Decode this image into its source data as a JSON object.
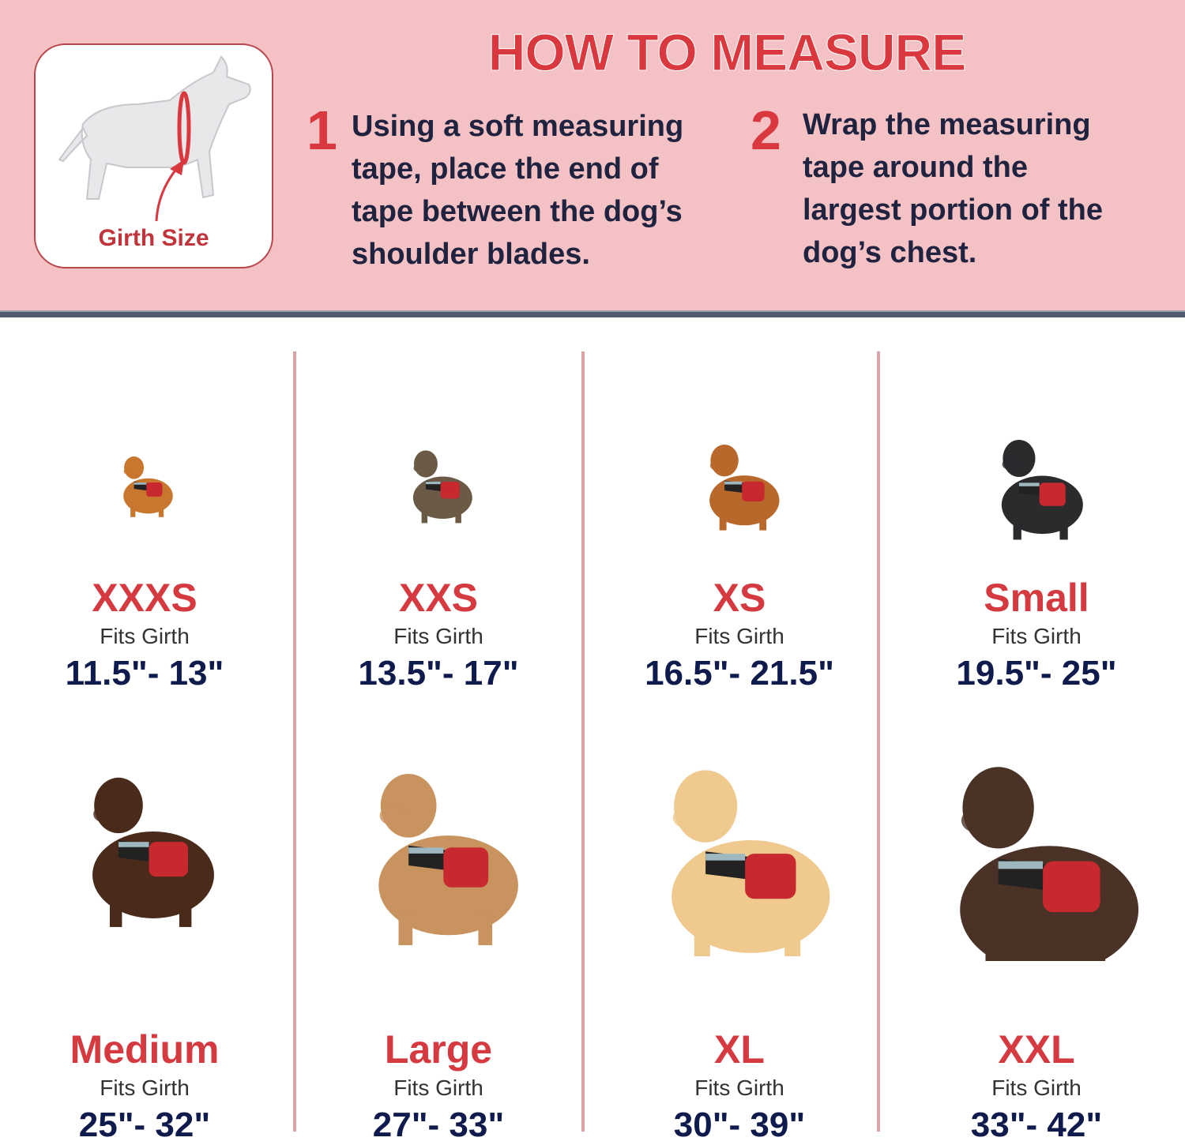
{
  "header": {
    "title": "HOW TO MEASURE",
    "girth_label": "Girth Size",
    "steps": [
      {
        "number": "1",
        "lines": [
          "Using a soft measuring",
          "tape, place the end of",
          "tape between the dog’s",
          "shoulder blades."
        ]
      },
      {
        "number": "2",
        "lines": [
          "Wrap the measuring",
          "tape around the",
          "largest portion of the",
          "dog’s chest."
        ]
      }
    ]
  },
  "colors": {
    "background": "#f4c2c4",
    "accent": "#d9383f",
    "text": "#1f2340",
    "range": "#0f1a4d"
  },
  "sizes": [
    {
      "size": "XXXS",
      "fits": "Fits Girth",
      "range": "11.5\"- 13\"",
      "fur": "#c9772f"
    },
    {
      "size": "XXS",
      "fits": "Fits Girth",
      "range": "13.5\"- 17\"",
      "fur": "#6b5a45"
    },
    {
      "size": "XS",
      "fits": "Fits Girth",
      "range": "16.5\"- 21.5\"",
      "fur": "#b8682b"
    },
    {
      "size": "Small",
      "fits": "Fits Girth",
      "range": "19.5\"- 25\"",
      "fur": "#2b2b2e"
    },
    {
      "size": "Medium",
      "fits": "Fits Girth",
      "range": "25\"- 32\"",
      "fur": "#4a2a1a"
    },
    {
      "size": "Large",
      "fits": "Fits Girth",
      "range": "27\"- 33\"",
      "fur": "#c8935e"
    },
    {
      "size": "XL",
      "fits": "Fits Girth",
      "range": "30\"- 39\"",
      "fur": "#efc98d"
    },
    {
      "size": "XXL",
      "fits": "Fits Girth",
      "range": "33\"- 42\"",
      "fur": "#4a3226"
    }
  ]
}
